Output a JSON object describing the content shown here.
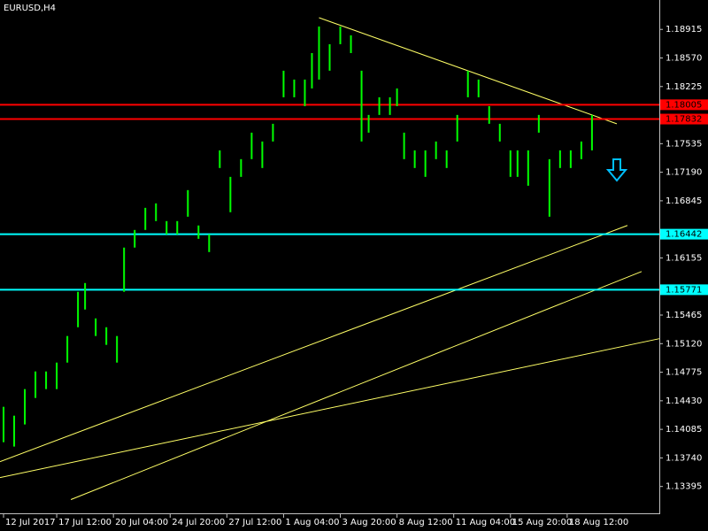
{
  "chart_data": {
    "type": "hilo",
    "title": "EURUSD,H4",
    "color": "#00ff00",
    "x": [
      0,
      3,
      6,
      9,
      12,
      15,
      18,
      21,
      23,
      26,
      29,
      32,
      34,
      37,
      40,
      43,
      46,
      49,
      52,
      55,
      58,
      61,
      64,
      67,
      70,
      73,
      76,
      79,
      82,
      85,
      87,
      89,
      92,
      95,
      98,
      101,
      103,
      106,
      109,
      111,
      113,
      116,
      119,
      122,
      125,
      128,
      131,
      134,
      137,
      140,
      143,
      145,
      148,
      151,
      154,
      157,
      160,
      163,
      166
    ],
    "high": [
      1.14357,
      1.1425,
      1.14571,
      1.14784,
      1.14784,
      1.14891,
      1.15212,
      1.15746,
      1.15852,
      1.15425,
      1.15318,
      1.15212,
      1.1628,
      1.16493,
      1.1676,
      1.16814,
      1.166,
      1.166,
      1.16974,
      1.16547,
      1.1644,
      1.17454,
      1.17134,
      1.17348,
      1.17668,
      1.17561,
      1.17775,
      1.18416,
      1.18309,
      1.18309,
      1.18629,
      1.1895,
      1.18736,
      1.1895,
      1.18843,
      1.18416,
      1.17882,
      1.18095,
      1.18095,
      1.18202,
      1.17668,
      1.17454,
      1.17454,
      1.17561,
      1.17454,
      1.17882,
      1.18416,
      1.18309,
      1.17988,
      1.17775,
      1.17454,
      1.17454,
      1.17454,
      1.17882,
      1.17348,
      1.17454,
      1.17454,
      1.17561,
      1.17882
    ],
    "low": [
      1.1393,
      1.13877,
      1.14144,
      1.14464,
      1.14571,
      1.14571,
      1.14891,
      1.15318,
      1.15532,
      1.15212,
      1.15105,
      1.14891,
      1.15746,
      1.1628,
      1.16493,
      1.166,
      1.1644,
      1.1644,
      1.16653,
      1.16386,
      1.16226,
      1.17241,
      1.16707,
      1.17134,
      1.17348,
      1.17241,
      1.17561,
      1.18095,
      1.18095,
      1.17988,
      1.18202,
      1.18309,
      1.18416,
      1.18736,
      1.18629,
      1.17561,
      1.17668,
      1.17882,
      1.17882,
      1.17988,
      1.17348,
      1.17241,
      1.17134,
      1.17348,
      1.17241,
      1.17561,
      1.18095,
      1.18095,
      1.17775,
      1.17561,
      1.17134,
      1.17134,
      1.17027,
      1.17668,
      1.16653,
      1.17241,
      1.17241,
      1.17348,
      1.17454
    ],
    "xlim": [
      -1,
      185
    ],
    "ylim": [
      1.1321,
      1.1927
    ],
    "xticks": [
      {
        "value": 0,
        "label": "12 Jul 2017"
      },
      {
        "value": 15,
        "label": "17 Jul 12:00"
      },
      {
        "value": 31,
        "label": "20 Jul 04:00"
      },
      {
        "value": 47,
        "label": "24 Jul 20:00"
      },
      {
        "value": 63,
        "label": "27 Jul 12:00"
      },
      {
        "value": 79,
        "label": "1 Aug 04:00"
      },
      {
        "value": 95,
        "label": "3 Aug 20:00"
      },
      {
        "value": 111,
        "label": "8 Aug 12:00"
      },
      {
        "value": 127,
        "label": "11 Aug 04:00"
      },
      {
        "value": 143,
        "label": "15 Aug 20:00"
      },
      {
        "value": 159,
        "label": "18 Aug 12:00"
      }
    ],
    "yticks": [
      1.18915,
      {
        "value": 1.1857,
        "label": "1.18570"
      },
      1.18225,
      1.17535,
      {
        "value": 1.1719,
        "label": "1.17190"
      },
      1.16845,
      1.16155,
      1.15465,
      {
        "value": 1.1512,
        "label": "1.15120"
      },
      1.14775,
      {
        "value": 1.1443,
        "label": "1.14430"
      },
      1.14085,
      {
        "value": 1.1374,
        "label": "1.13740"
      },
      1.13395
    ],
    "hlines": [
      {
        "value": 1.18005,
        "color": "#ff0000"
      },
      {
        "value": 1.17832,
        "color": "#ff0000"
      },
      {
        "value": 1.16442,
        "color": "#00ffff"
      },
      {
        "value": 1.15771,
        "color": "#00ffff"
      }
    ],
    "trend_lines": [
      {
        "color": "#ffff66",
        "x": [
          89,
          173
        ],
        "y": [
          1.19056,
          1.17775
        ]
      },
      {
        "color": "#ffff66",
        "x": [
          -1,
          176
        ],
        "y": [
          1.13695,
          1.16547
        ]
      },
      {
        "color": "#ffff66",
        "x": [
          19,
          180
        ],
        "y": [
          1.13237,
          1.15991
        ]
      },
      {
        "color": "#ffff66",
        "x": [
          -1,
          185
        ],
        "y": [
          1.13503,
          1.1518
        ]
      }
    ]
  }
}
